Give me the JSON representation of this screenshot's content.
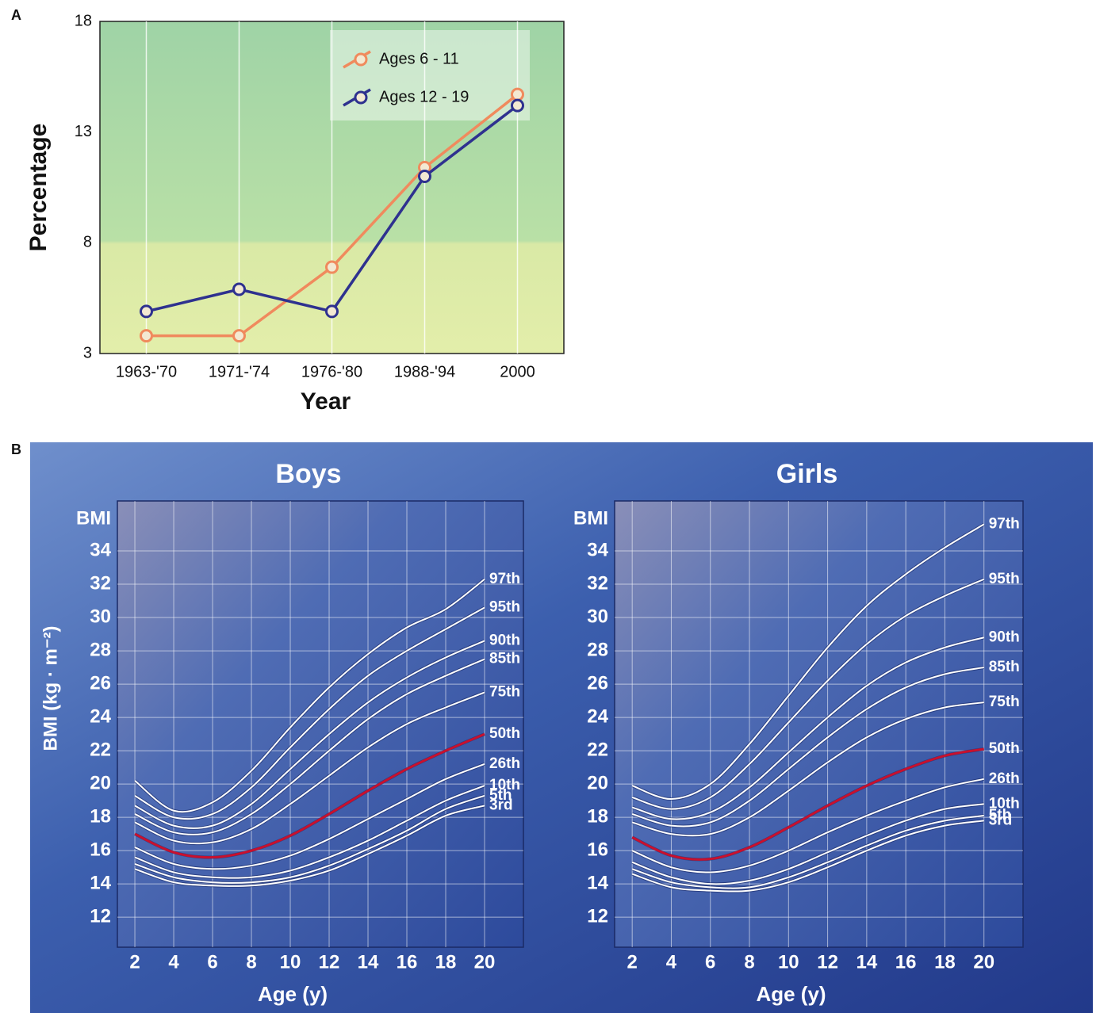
{
  "panel_labels": [
    "A",
    "B"
  ],
  "chart_data": [
    {
      "type": "line",
      "xlabel": "Year",
      "ylabel": "Percentage",
      "categories": [
        "1963-'70",
        "1971-'74",
        "1976-'80",
        "1988-'94",
        "2000"
      ],
      "series": [
        {
          "name": "Ages 6 - 11",
          "color": "#f08a5d",
          "values": [
            3.8,
            3.8,
            6.9,
            11.4,
            14.7
          ]
        },
        {
          "name": "Ages 12 - 19",
          "color": "#2e318f",
          "values": [
            4.9,
            5.9,
            4.9,
            11.0,
            14.2
          ]
        }
      ],
      "ylim": [
        3,
        18
      ],
      "yticks": [
        3,
        8,
        13,
        18
      ],
      "grid": true,
      "legend": "top"
    },
    {
      "type": "line",
      "title": "Boys",
      "xlabel": "Age (y)",
      "ylabel": "BMI (kg · m⁻²)",
      "y_unit": "BMI",
      "x": [
        2,
        4,
        6,
        8,
        10,
        12,
        14,
        16,
        18,
        20
      ],
      "series": [
        {
          "name": "97th",
          "color": "#ffffff",
          "values": [
            20.2,
            18.4,
            18.9,
            20.8,
            23.4,
            25.8,
            27.8,
            29.4,
            30.5,
            32.3
          ]
        },
        {
          "name": "95th",
          "color": "#ffffff",
          "values": [
            19.3,
            18.0,
            18.2,
            19.8,
            22.2,
            24.5,
            26.5,
            28.0,
            29.3,
            30.6
          ]
        },
        {
          "name": "90th",
          "color": "#ffffff",
          "values": [
            18.7,
            17.5,
            17.5,
            18.8,
            20.9,
            23.0,
            24.9,
            26.4,
            27.6,
            28.6
          ]
        },
        {
          "name": "85th",
          "color": "#ffffff",
          "values": [
            18.2,
            17.1,
            17.1,
            18.2,
            20.0,
            22.0,
            23.9,
            25.4,
            26.5,
            27.5
          ]
        },
        {
          "name": "75th",
          "color": "#ffffff",
          "values": [
            17.7,
            16.6,
            16.5,
            17.3,
            18.8,
            20.5,
            22.2,
            23.6,
            24.6,
            25.5
          ]
        },
        {
          "name": "50th",
          "color": "#c8102e",
          "values": [
            17.0,
            15.9,
            15.6,
            16.0,
            16.9,
            18.2,
            19.6,
            20.9,
            22.0,
            23.0
          ]
        },
        {
          "name": "26th",
          "color": "#ffffff",
          "values": [
            16.2,
            15.2,
            14.9,
            15.1,
            15.7,
            16.7,
            17.9,
            19.1,
            20.3,
            21.2
          ]
        },
        {
          "name": "10th",
          "color": "#ffffff",
          "values": [
            15.6,
            14.7,
            14.4,
            14.4,
            14.8,
            15.6,
            16.6,
            17.8,
            19.0,
            19.9
          ]
        },
        {
          "name": "5th",
          "color": "#ffffff",
          "values": [
            15.2,
            14.4,
            14.1,
            14.1,
            14.4,
            15.1,
            16.1,
            17.2,
            18.5,
            19.3
          ]
        },
        {
          "name": "3rd",
          "color": "#ffffff",
          "values": [
            14.9,
            14.1,
            13.9,
            13.9,
            14.2,
            14.8,
            15.8,
            16.9,
            18.1,
            18.7
          ]
        }
      ],
      "xlim": [
        1.1,
        22
      ],
      "xticks": [
        2,
        4,
        6,
        8,
        10,
        12,
        14,
        16,
        18,
        20
      ],
      "ylim": [
        10.2,
        37
      ],
      "yticks": [
        12,
        14,
        16,
        18,
        20,
        22,
        24,
        26,
        28,
        30,
        32,
        34
      ],
      "grid": true
    },
    {
      "type": "line",
      "title": "Girls",
      "xlabel": "Age (y)",
      "y_unit": "BMI",
      "x": [
        2,
        4,
        6,
        8,
        10,
        12,
        14,
        16,
        18,
        20
      ],
      "series": [
        {
          "name": "97th",
          "color": "#ffffff",
          "values": [
            19.9,
            19.1,
            20.0,
            22.4,
            25.3,
            28.2,
            30.7,
            32.6,
            34.2,
            35.6
          ]
        },
        {
          "name": "95th",
          "color": "#ffffff",
          "values": [
            19.2,
            18.5,
            19.2,
            21.2,
            23.7,
            26.2,
            28.4,
            30.1,
            31.3,
            32.3
          ]
        },
        {
          "name": "90th",
          "color": "#ffffff",
          "values": [
            18.6,
            17.9,
            18.3,
            19.8,
            21.9,
            24.0,
            25.9,
            27.3,
            28.2,
            28.8
          ]
        },
        {
          "name": "85th",
          "color": "#ffffff",
          "values": [
            18.2,
            17.5,
            17.7,
            19.0,
            20.9,
            22.8,
            24.5,
            25.8,
            26.6,
            27.0
          ]
        },
        {
          "name": "75th",
          "color": "#ffffff",
          "values": [
            17.7,
            17.0,
            17.0,
            18.0,
            19.6,
            21.3,
            22.8,
            23.9,
            24.6,
            24.9
          ]
        },
        {
          "name": "50th",
          "color": "#c8102e",
          "values": [
            16.8,
            15.7,
            15.5,
            16.2,
            17.4,
            18.7,
            19.9,
            20.9,
            21.7,
            22.1
          ]
        },
        {
          "name": "26th",
          "color": "#ffffff",
          "values": [
            16.0,
            15.0,
            14.7,
            15.1,
            16.0,
            17.1,
            18.1,
            19.0,
            19.8,
            20.3
          ]
        },
        {
          "name": "10th",
          "color": "#ffffff",
          "values": [
            15.3,
            14.4,
            14.0,
            14.2,
            14.9,
            15.9,
            16.9,
            17.8,
            18.5,
            18.8
          ]
        },
        {
          "name": "5th",
          "color": "#ffffff",
          "values": [
            14.9,
            14.1,
            13.8,
            13.8,
            14.4,
            15.3,
            16.3,
            17.2,
            17.8,
            18.1
          ]
        },
        {
          "name": "3rd",
          "color": "#ffffff",
          "values": [
            14.6,
            13.8,
            13.6,
            13.6,
            14.1,
            15.0,
            16.0,
            16.9,
            17.5,
            17.8
          ]
        }
      ],
      "xlim": [
        1.1,
        22
      ],
      "xticks": [
        2,
        4,
        6,
        8,
        10,
        12,
        14,
        16,
        18,
        20
      ],
      "ylim": [
        10.2,
        37
      ],
      "yticks": [
        12,
        14,
        16,
        18,
        20,
        22,
        24,
        26,
        28,
        30,
        32,
        34
      ],
      "grid": true
    }
  ]
}
